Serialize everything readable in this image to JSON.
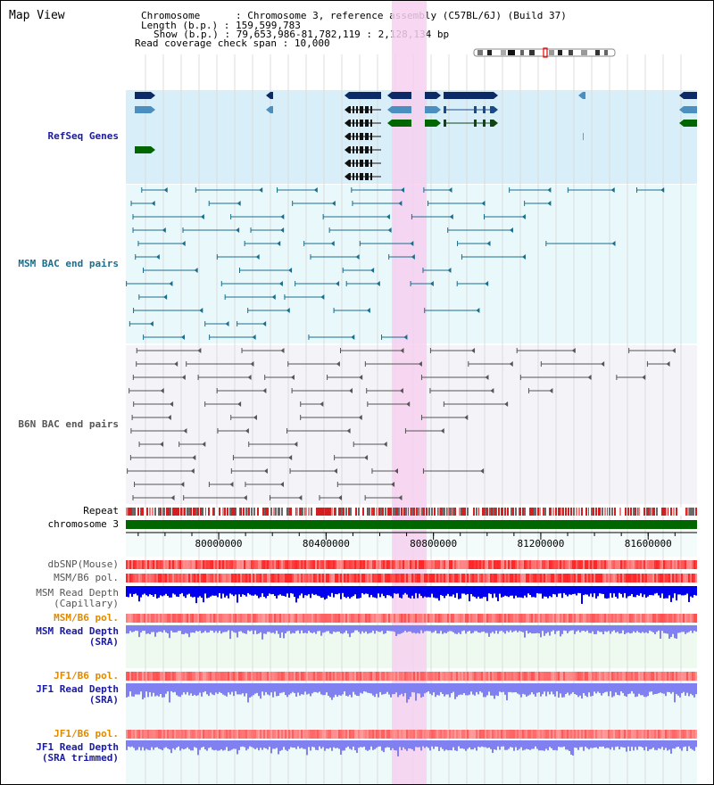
{
  "title": "Map View",
  "info": {
    "chromosome_label": "Chromosome",
    "chromosome_value": "Chromosome 3, reference assembly (C57BL/6J) (Build 37)",
    "length_label": "Length (b.p.)",
    "length_value": "159,599,783",
    "show_label": "Show (b.p.)",
    "show_value": "79,653,986-81,782,119 : 2,128,134 bp",
    "coverage_label": "Read coverage check span",
    "coverage_value": "10,000"
  },
  "tracks": {
    "refseq": "RefSeq Genes",
    "msm_bac": "MSM BAC end pairs",
    "b6n_bac": "B6N BAC end pairs",
    "repeat": "Repeat",
    "chromosome": "chromosome 3",
    "dbsnp": "dbSNP(Mouse)",
    "msm_b6_pol_1": "MSM/B6 pol.",
    "msm_read_depth_cap_1": "MSM Read Depth",
    "msm_read_depth_cap_2": "(Capillary)",
    "msm_b6_pol_2": "MSM/B6 pol.",
    "msm_read_depth_sra_1": "MSM Read Depth",
    "msm_read_depth_sra_2": "(SRA)",
    "jf1_b6_pol_1": "JF1/B6 pol.",
    "jf1_read_depth_sra_1": "JF1 Read Depth",
    "jf1_read_depth_sra_2": "(SRA)",
    "jf1_b6_pol_2": "JF1/B6 pol.",
    "jf1_read_depth_trim_1": "JF1 Read Depth",
    "jf1_read_depth_trim_2": "(SRA trimmed)"
  },
  "ruler": {
    "start_bp": 79653986,
    "end_bp": 81782119,
    "ticks": [
      "80000000",
      "80400000",
      "80800000",
      "81200000",
      "81600000"
    ]
  },
  "highlight": {
    "start_bp": 80645000,
    "end_bp": 80775000
  },
  "colors": {
    "refseq_dark": "#0b2a66",
    "refseq_mid": "#4a8fc0",
    "refseq_green": "#006600",
    "msm_pair": "#1a6e8c",
    "b6n_pair": "#555555",
    "chromosome": "#006600",
    "highlight": "#f6d0f0",
    "msm_label": "#1a6e8c",
    "refseq_label": "#1a1aa0",
    "b6n_label": "#555555",
    "pol_label_orange": "#e08a00",
    "depth_label": "#1a1aa0",
    "read_depth_blue": "#0000ee",
    "read_depth_light": "#8080f0"
  }
}
